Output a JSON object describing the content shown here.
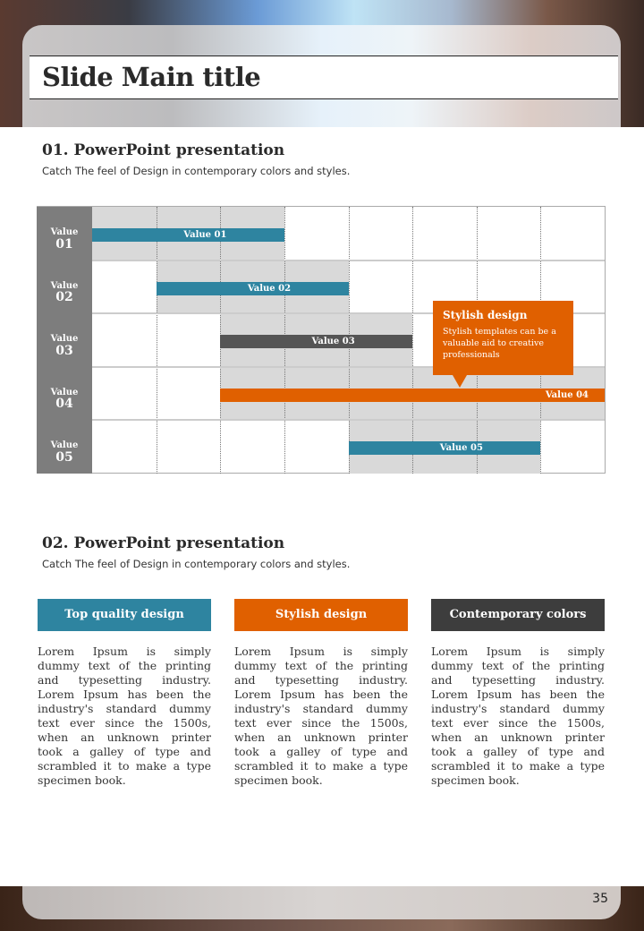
{
  "title": "Slide Main title",
  "section1": {
    "heading": "01. PowerPoint presentation",
    "subtitle": "Catch The feel of Design in contemporary colors and styles."
  },
  "gantt": {
    "columns": 8,
    "rows": [
      {
        "label_top": "Value",
        "label_num": "01",
        "bar_label": "Value 01",
        "start": 0,
        "end": 3,
        "color": "#2e84a0"
      },
      {
        "label_top": "Value",
        "label_num": "02",
        "bar_label": "Value 02",
        "start": 1,
        "end": 4,
        "color": "#2e84a0"
      },
      {
        "label_top": "Value",
        "label_num": "03",
        "bar_label": "Value 03",
        "start": 2,
        "end": 5,
        "color": "#555555"
      },
      {
        "label_top": "Value",
        "label_num": "04",
        "bar_label": "Value 04",
        "start": 2,
        "end": 8,
        "color": "#e06000"
      },
      {
        "label_top": "Value",
        "label_num": "05",
        "bar_label": "Value 05",
        "start": 4,
        "end": 7,
        "color": "#2e84a0"
      }
    ],
    "callout": {
      "title": "Stylish design",
      "text": "Stylish templates can be a valuable aid to creative professionals"
    }
  },
  "section2": {
    "heading": "02. PowerPoint presentation",
    "subtitle": "Catch The feel of Design in contemporary colors and styles."
  },
  "columns": [
    {
      "header": "Top quality design",
      "color": "#2e84a0",
      "text": "Lorem Ipsum is simply dummy text of the printing and typesetting industry. Lorem Ipsum has been the industry's standard dummy text ever since the 1500s, when an unknown printer took a galley of type and scrambled it to make a type specimen book."
    },
    {
      "header": "Stylish design",
      "color": "#e06000",
      "text": "Lorem Ipsum is simply dummy text of the printing and typesetting industry. Lorem Ipsum has been the industry's standard dummy text ever since the 1500s, when an unknown printer took a galley of type and scrambled it to make a type specimen book."
    },
    {
      "header": "Contemporary colors",
      "color": "#3d3d3d",
      "text": "Lorem Ipsum is simply dummy text of the printing and typesetting industry. Lorem Ipsum has been the industry's standard dummy text ever since the 1500s, when an unknown printer took a galley of type and scrambled it to make a type specimen book."
    }
  ],
  "page_number": "35"
}
